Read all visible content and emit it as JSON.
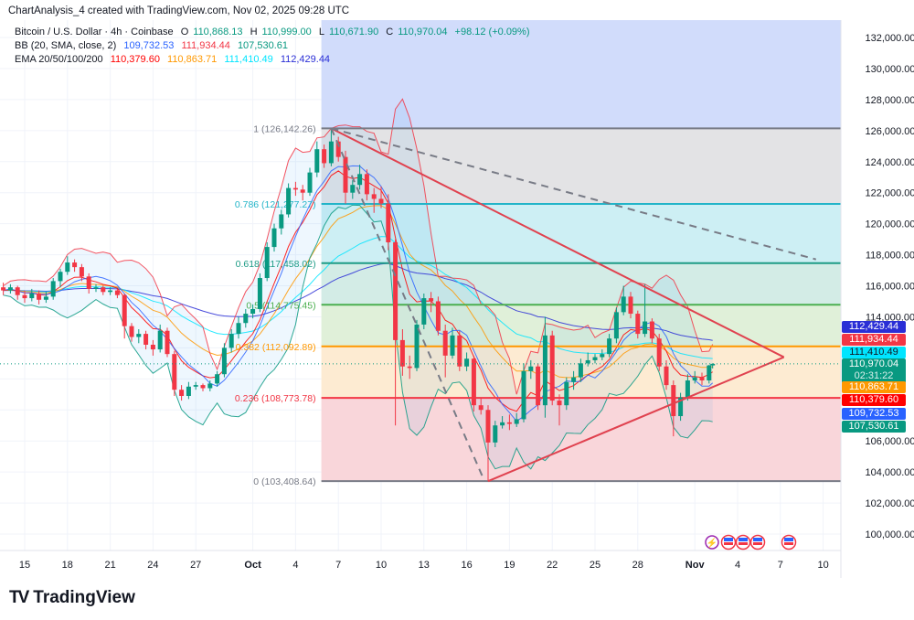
{
  "header": {
    "created": "ChartAnalysis_4 created with TradingView.com, Nov 02, 2025 09:28 UTC",
    "symbol": "Bitcoin / U.S. Dollar · 4h · Coinbase",
    "ohlc": {
      "o_label": "O",
      "o": "110,868.13",
      "h_label": "H",
      "h": "110,999.00",
      "l_label": "L",
      "l": "110,671.90",
      "c_label": "C",
      "c": "110,970.04",
      "change": "+98.12 (+0.09%)"
    },
    "bb": {
      "label": "BB (20, SMA, close, 2)",
      "basis": "109,732.53",
      "upper": "111,934.44",
      "lower": "107,530.61"
    },
    "ema": {
      "label": "EMA 20/50/100/200",
      "ema20": "110,379.60",
      "ema50": "110,863.71",
      "ema100": "111,410.49",
      "ema200": "112,429.44"
    }
  },
  "logo": {
    "text": "TradingView"
  },
  "colors": {
    "up": "#089981",
    "down": "#f23645",
    "bb_upper": "#f23645",
    "bb_basis": "#2962ff",
    "bb_lower": "#089981",
    "ema20": "#ff0000",
    "ema50": "#ff9800",
    "ema100": "#00e5ff",
    "ema200": "#2a2ed6",
    "trendline": "#e0424f",
    "dashed": "#787b86"
  },
  "price_badges": [
    {
      "value": "112,429.44",
      "bg": "#2a2ed6",
      "fg": "#ffffff"
    },
    {
      "value": "111,934.44",
      "bg": "#f23645",
      "fg": "#ffffff"
    },
    {
      "value": "111,410.49",
      "bg": "#00e5ff",
      "fg": "#131722"
    },
    {
      "value": "110,970.04",
      "sub": "02:31:22",
      "bg": "#089981",
      "fg": "#ffffff"
    },
    {
      "value": "110,863.71",
      "bg": "#ff9800",
      "fg": "#ffffff"
    },
    {
      "value": "110,379.60",
      "bg": "#ff0000",
      "fg": "#ffffff"
    },
    {
      "value": "109,732.53",
      "bg": "#2962ff",
      "fg": "#ffffff"
    },
    {
      "value": "107,530.61",
      "bg": "#089981",
      "fg": "#ffffff"
    }
  ],
  "event_icons": [
    "lightning-icon",
    "us-flag-icon",
    "us-flag-icon",
    "us-flag-icon",
    "us-flag-icon"
  ],
  "chart_data": {
    "type": "candlestick",
    "ylim": [
      98500,
      133300
    ],
    "xlim": [
      "2025-09-13",
      "2025-11-13"
    ],
    "grid": true,
    "y_ticks": [
      "132,000.00",
      "130,000.00",
      "128,000.00",
      "126,000.00",
      "124,000.00",
      "122,000.00",
      "120,000.00",
      "118,000.00",
      "116,000.00",
      "114,000.00",
      "106,000.00",
      "104,000.00",
      "102,000.00",
      "100,000.00"
    ],
    "y_tick_values": [
      132000,
      130000,
      128000,
      126000,
      124000,
      122000,
      120000,
      118000,
      116000,
      114000,
      106000,
      104000,
      102000,
      100000
    ],
    "x_ticks": [
      {
        "label": "15",
        "date": "2025-09-15"
      },
      {
        "label": "18",
        "date": "2025-09-18"
      },
      {
        "label": "21",
        "date": "2025-09-21"
      },
      {
        "label": "24",
        "date": "2025-09-24"
      },
      {
        "label": "27",
        "date": "2025-09-27"
      },
      {
        "label": "Oct",
        "date": "2025-10-01",
        "bold": true
      },
      {
        "label": "4",
        "date": "2025-10-04"
      },
      {
        "label": "7",
        "date": "2025-10-07"
      },
      {
        "label": "10",
        "date": "2025-10-10"
      },
      {
        "label": "13",
        "date": "2025-10-13"
      },
      {
        "label": "16",
        "date": "2025-10-16"
      },
      {
        "label": "19",
        "date": "2025-10-19"
      },
      {
        "label": "22",
        "date": "2025-10-22"
      },
      {
        "label": "25",
        "date": "2025-10-25"
      },
      {
        "label": "28",
        "date": "2025-10-28"
      },
      {
        "label": "Nov",
        "date": "2025-11-01",
        "bold": true
      },
      {
        "label": "4",
        "date": "2025-11-04"
      },
      {
        "label": "7",
        "date": "2025-11-07"
      },
      {
        "label": "10",
        "date": "2025-11-10"
      }
    ],
    "last_price": 110970.04,
    "fibonacci": {
      "start_date": "2025-10-06",
      "levels": [
        {
          "ratio": "1",
          "price": 126142.26,
          "label": "1 (126,142.26)",
          "line": "#787b86",
          "fill": "#e3e3e5",
          "text": "#787b86"
        },
        {
          "ratio": "0.786",
          "price": 121277.27,
          "label": "0.786 (121,277.27)",
          "line": "#22b4c8",
          "fill": "#cdeff4",
          "text": "#22b4c8"
        },
        {
          "ratio": "0.618",
          "price": 117458.02,
          "label": "0.618 (117,458.02)",
          "line": "#1e9c86",
          "fill": "#d3ece6",
          "text": "#1e9c86"
        },
        {
          "ratio": "0.5",
          "price": 114775.45,
          "label": "0.5 (114,775.45)",
          "line": "#4caf50",
          "fill": "#e0f0d9",
          "text": "#4caf50"
        },
        {
          "ratio": "0.382",
          "price": 112092.89,
          "label": "0.382 (112,092.89)",
          "line": "#ff9800",
          "fill": "#fdebd2",
          "text": "#ff9800"
        },
        {
          "ratio": "0.236",
          "price": 108773.78,
          "label": "0.236 (108,773.78)",
          "line": "#f23645",
          "fill": "#f9d6da",
          "text": "#f23645"
        },
        {
          "ratio": "0",
          "price": 103408.64,
          "label": "0 (103,408.64)",
          "line": "#787b86",
          "fill": null,
          "text": "#787b86"
        }
      ],
      "above_fill": "#d1dcfb"
    },
    "trendlines": [
      {
        "style": "solid",
        "from": [
          "2025-10-06 12:00",
          126142
        ],
        "to": [
          "2025-11-07 06:00",
          111400
        ]
      },
      {
        "style": "solid",
        "from": [
          "2025-10-17 12:00",
          103408
        ],
        "to": [
          "2025-11-07 06:00",
          111400
        ]
      },
      {
        "style": "dashed",
        "from": [
          "2025-10-06 12:00",
          126142
        ],
        "to": [
          "2025-11-09 12:00",
          117700
        ]
      },
      {
        "style": "dashed",
        "from": [
          "2025-10-06 12:00",
          126142
        ],
        "to": [
          "2025-10-17 06:00",
          103408
        ]
      }
    ],
    "candles_columns": [
      "time",
      "open",
      "high",
      "low",
      "close"
    ],
    "candles": [
      [
        "2025-09-13 12:00",
        115900,
        116200,
        115400,
        115700
      ],
      [
        "2025-09-14 00:00",
        115700,
        116100,
        115500,
        115900
      ],
      [
        "2025-09-14 12:00",
        115900,
        116000,
        115100,
        115400
      ],
      [
        "2025-09-15 00:00",
        115400,
        115700,
        114900,
        115200
      ],
      [
        "2025-09-15 12:00",
        115200,
        115800,
        115000,
        115500
      ],
      [
        "2025-09-16 00:00",
        115500,
        115700,
        114800,
        115100
      ],
      [
        "2025-09-16 12:00",
        115100,
        115600,
        114900,
        115300
      ],
      [
        "2025-09-17 00:00",
        115300,
        116500,
        115100,
        116300
      ],
      [
        "2025-09-17 12:00",
        116300,
        117100,
        115900,
        116900
      ],
      [
        "2025-09-18 00:00",
        116900,
        117900,
        116700,
        117500
      ],
      [
        "2025-09-18 12:00",
        117500,
        117700,
        116900,
        117200
      ],
      [
        "2025-09-19 00:00",
        117200,
        117400,
        116300,
        116600
      ],
      [
        "2025-09-19 12:00",
        116600,
        116800,
        115500,
        115800
      ],
      [
        "2025-09-20 00:00",
        115800,
        116100,
        115600,
        115900
      ],
      [
        "2025-09-20 12:00",
        115900,
        116000,
        115400,
        115600
      ],
      [
        "2025-09-21 00:00",
        115600,
        115900,
        115400,
        115700
      ],
      [
        "2025-09-21 12:00",
        115700,
        115800,
        115200,
        115400
      ],
      [
        "2025-09-22 00:00",
        115400,
        115500,
        112600,
        113400
      ],
      [
        "2025-09-22 12:00",
        113400,
        113600,
        112400,
        112700
      ],
      [
        "2025-09-23 00:00",
        112700,
        113200,
        112300,
        112900
      ],
      [
        "2025-09-23 12:00",
        112900,
        113100,
        111900,
        112200
      ],
      [
        "2025-09-24 00:00",
        112200,
        112500,
        111500,
        111900
      ],
      [
        "2025-09-24 12:00",
        111900,
        113500,
        111700,
        113100
      ],
      [
        "2025-09-25 00:00",
        113100,
        113300,
        111400,
        111600
      ],
      [
        "2025-09-25 12:00",
        111600,
        111800,
        108900,
        109300
      ],
      [
        "2025-09-26 00:00",
        109300,
        109600,
        108600,
        108900
      ],
      [
        "2025-09-26 12:00",
        108900,
        109800,
        108700,
        109500
      ],
      [
        "2025-09-27 00:00",
        109500,
        109800,
        109300,
        109600
      ],
      [
        "2025-09-27 12:00",
        109600,
        109700,
        109200,
        109400
      ],
      [
        "2025-09-28 00:00",
        109400,
        109900,
        109200,
        109700
      ],
      [
        "2025-09-28 12:00",
        109700,
        110500,
        109500,
        110300
      ],
      [
        "2025-09-29 00:00",
        110300,
        112300,
        110100,
        112000
      ],
      [
        "2025-09-29 12:00",
        112000,
        113200,
        111700,
        112900
      ],
      [
        "2025-09-30 00:00",
        112900,
        114000,
        112600,
        113600
      ],
      [
        "2025-09-30 12:00",
        113600,
        114500,
        113300,
        114200
      ],
      [
        "2025-10-01 00:00",
        114200,
        114800,
        113900,
        114500
      ],
      [
        "2025-10-01 12:00",
        114500,
        116800,
        114300,
        116500
      ],
      [
        "2025-10-02 00:00",
        116500,
        118800,
        116300,
        118500
      ],
      [
        "2025-10-02 12:00",
        118500,
        120000,
        118200,
        119700
      ],
      [
        "2025-10-03 00:00",
        119700,
        120900,
        119300,
        120600
      ],
      [
        "2025-10-03 12:00",
        120600,
        122600,
        120400,
        122300
      ],
      [
        "2025-10-04 00:00",
        122300,
        122700,
        121800,
        122200
      ],
      [
        "2025-10-04 12:00",
        122200,
        122500,
        121500,
        122000
      ],
      [
        "2025-10-05 00:00",
        122000,
        123600,
        121800,
        123300
      ],
      [
        "2025-10-05 12:00",
        123300,
        125300,
        123000,
        124800
      ],
      [
        "2025-10-06 00:00",
        124800,
        125100,
        123600,
        123900
      ],
      [
        "2025-10-06 12:00",
        123900,
        126142,
        123700,
        125300
      ],
      [
        "2025-10-07 00:00",
        125300,
        125600,
        124000,
        124300
      ],
      [
        "2025-10-07 12:00",
        124300,
        124700,
        121300,
        122000
      ],
      [
        "2025-10-08 00:00",
        122000,
        122800,
        121600,
        122500
      ],
      [
        "2025-10-08 12:00",
        122500,
        123800,
        122200,
        123200
      ],
      [
        "2025-10-09 00:00",
        123200,
        123500,
        121500,
        121900
      ],
      [
        "2025-10-09 12:00",
        121900,
        122300,
        120700,
        121600
      ],
      [
        "2025-10-10 00:00",
        121600,
        122400,
        121000,
        121300
      ],
      [
        "2025-10-10 12:00",
        121300,
        121900,
        118300,
        118800
      ],
      [
        "2025-10-11 00:00",
        118800,
        119000,
        107000,
        112500
      ],
      [
        "2025-10-11 12:00",
        112500,
        113200,
        110200,
        110800
      ],
      [
        "2025-10-12 00:00",
        110800,
        111500,
        110000,
        110700
      ],
      [
        "2025-10-12 12:00",
        110700,
        113800,
        110500,
        113500
      ],
      [
        "2025-10-13 00:00",
        113500,
        115500,
        113200,
        115200
      ],
      [
        "2025-10-13 12:00",
        115200,
        115600,
        114300,
        115000
      ],
      [
        "2025-10-14 00:00",
        115000,
        115300,
        112800,
        113100
      ],
      [
        "2025-10-14 12:00",
        113100,
        113500,
        110100,
        111500
      ],
      [
        "2025-10-15 00:00",
        111500,
        113300,
        111300,
        112800
      ],
      [
        "2025-10-15 12:00",
        112800,
        113100,
        110500,
        110800
      ],
      [
        "2025-10-16 00:00",
        110800,
        111700,
        110500,
        111300
      ],
      [
        "2025-10-16 12:00",
        111300,
        111500,
        107900,
        108300
      ],
      [
        "2025-10-17 00:00",
        108300,
        108800,
        107700,
        108000
      ],
      [
        "2025-10-17 12:00",
        108000,
        108300,
        103408,
        105900
      ],
      [
        "2025-10-18 00:00",
        105900,
        107300,
        105600,
        107000
      ],
      [
        "2025-10-18 12:00",
        107000,
        107600,
        106800,
        107200
      ],
      [
        "2025-10-19 00:00",
        107200,
        107700,
        106700,
        107100
      ],
      [
        "2025-10-19 12:00",
        107100,
        107800,
        106900,
        107400
      ],
      [
        "2025-10-20 00:00",
        107400,
        111000,
        107200,
        110500
      ],
      [
        "2025-10-20 12:00",
        110500,
        111200,
        110000,
        110800
      ],
      [
        "2025-10-21 00:00",
        110800,
        111000,
        108000,
        108300
      ],
      [
        "2025-10-21 12:00",
        108300,
        114000,
        107500,
        112800
      ],
      [
        "2025-10-22 00:00",
        112800,
        113100,
        108300,
        108600
      ],
      [
        "2025-10-22 12:00",
        108600,
        109000,
        107000,
        108300
      ],
      [
        "2025-10-23 00:00",
        108300,
        110100,
        108000,
        109800
      ],
      [
        "2025-10-23 12:00",
        109800,
        110500,
        109300,
        110100
      ],
      [
        "2025-10-24 00:00",
        110100,
        111300,
        109800,
        111000
      ],
      [
        "2025-10-24 12:00",
        111000,
        111700,
        110800,
        111200
      ],
      [
        "2025-10-25 00:00",
        111200,
        111600,
        111000,
        111400
      ],
      [
        "2025-10-25 12:00",
        111400,
        111900,
        111200,
        111600
      ],
      [
        "2025-10-26 00:00",
        111600,
        112900,
        111400,
        112600
      ],
      [
        "2025-10-26 12:00",
        112600,
        114600,
        112300,
        114300
      ],
      [
        "2025-10-27 00:00",
        114300,
        116000,
        114100,
        115300
      ],
      [
        "2025-10-27 12:00",
        115300,
        115600,
        113900,
        114200
      ],
      [
        "2025-10-28 00:00",
        114200,
        114400,
        112600,
        112900
      ],
      [
        "2025-10-28 12:00",
        112900,
        116100,
        112700,
        113700
      ],
      [
        "2025-10-29 00:00",
        113700,
        113900,
        112300,
        112600
      ],
      [
        "2025-10-29 12:00",
        112600,
        112900,
        110500,
        110800
      ],
      [
        "2025-10-30 00:00",
        110800,
        111200,
        109300,
        109600
      ],
      [
        "2025-10-30 12:00",
        109600,
        109900,
        106300,
        107600
      ],
      [
        "2025-10-31 00:00",
        107600,
        109100,
        107300,
        108800
      ],
      [
        "2025-10-31 12:00",
        108800,
        110300,
        108600,
        109900
      ],
      [
        "2025-11-01 00:00",
        109900,
        110500,
        109700,
        110100
      ],
      [
        "2025-11-01 12:00",
        110100,
        110400,
        109600,
        109900
      ],
      [
        "2025-11-02 00:00",
        109900,
        110900,
        109700,
        110868.13
      ],
      [
        "2025-11-02 06:00",
        110868.13,
        110999.0,
        110671.9,
        110970.04
      ]
    ]
  }
}
